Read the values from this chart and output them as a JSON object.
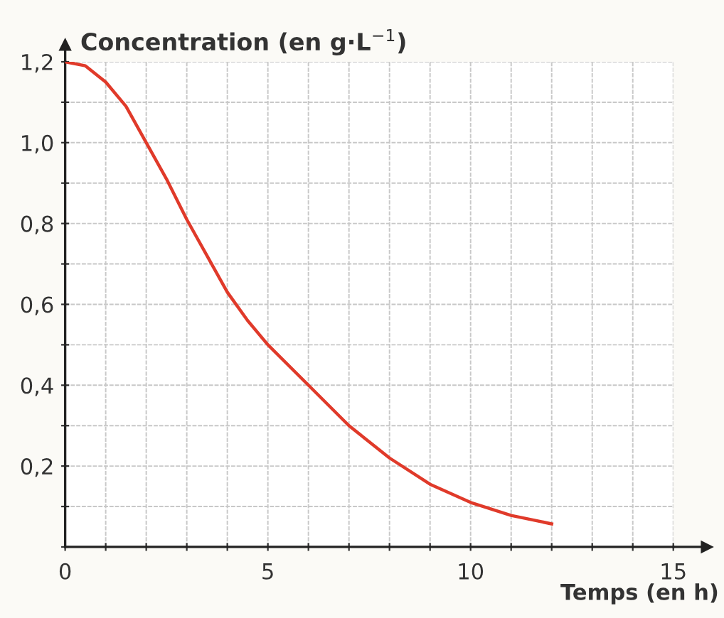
{
  "chart_data": {
    "type": "line",
    "ylabel": "Concentration (en g·L$^{−1}$)",
    "xlabel": "Temps (en h)",
    "series": [
      {
        "color": "#e03a2a",
        "x": [
          0,
          0.5,
          1,
          1.5,
          2,
          2.5,
          3,
          3.5,
          4,
          4.5,
          5,
          6,
          7,
          8,
          9,
          10,
          11,
          12
        ],
        "values": [
          1.2,
          1.19,
          1.15,
          1.09,
          1.0,
          0.91,
          0.81,
          0.72,
          0.63,
          0.56,
          0.5,
          0.4,
          0.3,
          0.22,
          0.155,
          0.11,
          0.078,
          0.057
        ]
      }
    ],
    "xlim": [
      0,
      15
    ],
    "ylim": [
      0,
      1.2
    ],
    "xticks": [
      {
        "value": 0,
        "label": "0"
      },
      {
        "value": 1,
        "label": null
      },
      {
        "value": 2,
        "label": null
      },
      {
        "value": 3,
        "label": null
      },
      {
        "value": 4,
        "label": null
      },
      5,
      {
        "value": 6,
        "label": null
      },
      {
        "value": 7,
        "label": null
      },
      {
        "value": 8,
        "label": null
      },
      {
        "value": 9,
        "label": null
      },
      10,
      {
        "value": 11,
        "label": null
      },
      {
        "value": 12,
        "label": null
      },
      {
        "value": 13,
        "label": null
      },
      {
        "value": 14,
        "label": null
      },
      15
    ],
    "yticks": [
      {
        "value": 0,
        "label": null
      },
      {
        "value": 0.1,
        "label": null
      },
      {
        "value": 0.2,
        "label": "0,2"
      },
      {
        "value": 0.3,
        "label": null
      },
      {
        "value": 0.4,
        "label": "0,4"
      },
      {
        "value": 0.5,
        "label": null
      },
      {
        "value": 0.6,
        "label": "0,6"
      },
      {
        "value": 0.7,
        "label": null
      },
      {
        "value": 0.8,
        "label": "0,8"
      },
      {
        "value": 0.9,
        "label": null
      },
      {
        "value": 1.0,
        "label": "1,0"
      },
      {
        "value": 1.1,
        "label": null
      },
      {
        "value": 1.2,
        "label": "1,2"
      }
    ],
    "grid": true,
    "marker": "none",
    "line_style": "solid",
    "legend": false
  }
}
